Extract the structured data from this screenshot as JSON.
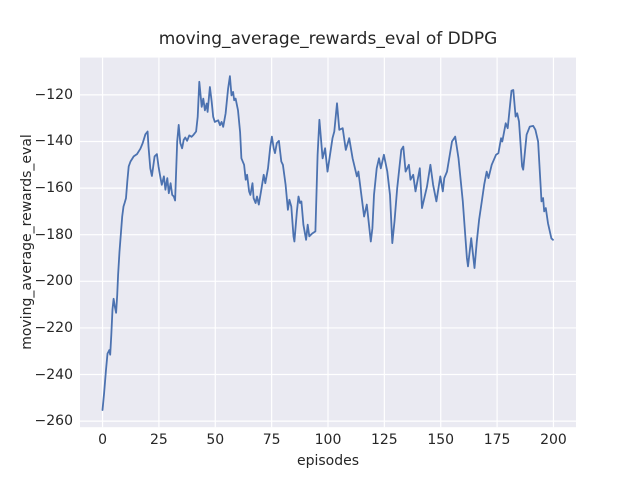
{
  "chart_data": {
    "type": "line",
    "title": "moving_average_rewards_eval of DDPG",
    "xlabel": "episodes",
    "ylabel": "moving_average_rewards_eval",
    "x_ticks": [
      0,
      25,
      50,
      75,
      100,
      125,
      150,
      175,
      200
    ],
    "y_ticks": [
      -120,
      -140,
      -160,
      -180,
      -200,
      -220,
      -240,
      -260
    ],
    "xlim": [
      -10,
      210
    ],
    "ylim": [
      -262.6,
      -104.0
    ],
    "grid": true,
    "legend": "none",
    "style": {
      "axes_background": "#EAEAF2",
      "grid_color": "#FFFFFF",
      "line_color": "#4C72B0",
      "text_color": "#262626",
      "line_width": 1.8
    },
    "series": [
      {
        "name": "moving_average_rewards_eval",
        "points": [
          [
            0.0,
            -255.2
          ],
          [
            0.7,
            -248.0
          ],
          [
            1.5,
            -238.5
          ],
          [
            2.2,
            -231.0
          ],
          [
            3.0,
            -229.5
          ],
          [
            3.4,
            -231.5
          ],
          [
            3.9,
            -223.0
          ],
          [
            4.4,
            -212.0
          ],
          [
            4.9,
            -207.5
          ],
          [
            5.4,
            -210.5
          ],
          [
            6.0,
            -213.5
          ],
          [
            6.5,
            -206.0
          ],
          [
            6.9,
            -197.2
          ],
          [
            7.5,
            -187.2
          ],
          [
            8.1,
            -180.0
          ],
          [
            8.7,
            -172.2
          ],
          [
            9.3,
            -167.9
          ],
          [
            9.8,
            -166.4
          ],
          [
            10.4,
            -164.3
          ],
          [
            11.0,
            -157.2
          ],
          [
            11.6,
            -150.7
          ],
          [
            12.4,
            -148.6
          ],
          [
            13.8,
            -146.4
          ],
          [
            15.3,
            -145.4
          ],
          [
            16.8,
            -143.1
          ],
          [
            17.8,
            -140.7
          ],
          [
            19.0,
            -136.9
          ],
          [
            20.0,
            -135.7
          ],
          [
            20.4,
            -142.2
          ],
          [
            21.2,
            -151.5
          ],
          [
            21.9,
            -154.8
          ],
          [
            23.1,
            -146.4
          ],
          [
            24.1,
            -145.4
          ],
          [
            24.8,
            -150.7
          ],
          [
            25.7,
            -155.7
          ],
          [
            26.3,
            -158.6
          ],
          [
            27.2,
            -155.0
          ],
          [
            27.9,
            -160.7
          ],
          [
            28.7,
            -155.7
          ],
          [
            29.4,
            -162.2
          ],
          [
            30.2,
            -157.9
          ],
          [
            30.9,
            -162.9
          ],
          [
            31.6,
            -163.6
          ],
          [
            32.2,
            -165.3
          ],
          [
            33.1,
            -140.0
          ],
          [
            33.8,
            -132.9
          ],
          [
            34.5,
            -140.7
          ],
          [
            35.3,
            -142.9
          ],
          [
            36.0,
            -139.3
          ],
          [
            36.7,
            -138.3
          ],
          [
            37.5,
            -139.7
          ],
          [
            38.5,
            -137.4
          ],
          [
            39.5,
            -138.0
          ],
          [
            40.4,
            -137.1
          ],
          [
            41.5,
            -135.7
          ],
          [
            42.2,
            -129.4
          ],
          [
            42.9,
            -114.4
          ],
          [
            44.0,
            -125.1
          ],
          [
            44.7,
            -121.6
          ],
          [
            45.4,
            -126.6
          ],
          [
            46.2,
            -123.7
          ],
          [
            46.6,
            -127.3
          ],
          [
            47.6,
            -116.6
          ],
          [
            48.4,
            -123.0
          ],
          [
            49.1,
            -129.4
          ],
          [
            49.8,
            -131.6
          ],
          [
            51.3,
            -130.9
          ],
          [
            52.1,
            -133.0
          ],
          [
            52.8,
            -131.6
          ],
          [
            53.5,
            -133.7
          ],
          [
            54.6,
            -128.0
          ],
          [
            55.7,
            -117.3
          ],
          [
            56.5,
            -112.0
          ],
          [
            57.2,
            -120.2
          ],
          [
            57.9,
            -118.7
          ],
          [
            58.4,
            -122.3
          ],
          [
            59.0,
            -121.6
          ],
          [
            60.1,
            -126.6
          ],
          [
            61.0,
            -136.0
          ],
          [
            61.6,
            -147.2
          ],
          [
            62.8,
            -150.0
          ],
          [
            63.5,
            -156.4
          ],
          [
            64.1,
            -154.3
          ],
          [
            65.0,
            -161.4
          ],
          [
            65.6,
            -162.9
          ],
          [
            66.5,
            -157.9
          ],
          [
            67.0,
            -164.3
          ],
          [
            67.9,
            -166.4
          ],
          [
            68.5,
            -163.6
          ],
          [
            69.3,
            -167.1
          ],
          [
            70.4,
            -160.7
          ],
          [
            71.5,
            -154.3
          ],
          [
            72.2,
            -157.9
          ],
          [
            73.4,
            -151.5
          ],
          [
            74.4,
            -142.2
          ],
          [
            75.1,
            -137.9
          ],
          [
            75.9,
            -142.9
          ],
          [
            76.5,
            -145.0
          ],
          [
            77.3,
            -140.7
          ],
          [
            78.2,
            -139.7
          ],
          [
            79.3,
            -148.6
          ],
          [
            80.0,
            -150.0
          ],
          [
            81.2,
            -158.6
          ],
          [
            82.2,
            -169.3
          ],
          [
            82.9,
            -165.0
          ],
          [
            83.7,
            -167.9
          ],
          [
            84.7,
            -180.7
          ],
          [
            85.1,
            -182.9
          ],
          [
            86.2,
            -170.0
          ],
          [
            86.9,
            -163.6
          ],
          [
            87.6,
            -166.4
          ],
          [
            88.2,
            -165.7
          ],
          [
            89.1,
            -175.7
          ],
          [
            90.3,
            -182.2
          ],
          [
            91.0,
            -175.7
          ],
          [
            91.7,
            -180.7
          ],
          [
            93.0,
            -179.5
          ],
          [
            94.4,
            -178.6
          ],
          [
            95.4,
            -145.7
          ],
          [
            96.2,
            -130.7
          ],
          [
            97.6,
            -147.2
          ],
          [
            98.7,
            -142.9
          ],
          [
            99.8,
            -152.9
          ],
          [
            102.0,
            -138.6
          ],
          [
            102.8,
            -135.7
          ],
          [
            104.0,
            -123.6
          ],
          [
            105.0,
            -135.0
          ],
          [
            106.5,
            -134.3
          ],
          [
            107.9,
            -143.6
          ],
          [
            109.4,
            -138.6
          ],
          [
            110.9,
            -147.2
          ],
          [
            112.8,
            -155.0
          ],
          [
            113.5,
            -152.9
          ],
          [
            116.0,
            -172.2
          ],
          [
            117.2,
            -167.1
          ],
          [
            119.0,
            -182.9
          ],
          [
            119.7,
            -177.2
          ],
          [
            120.4,
            -162.9
          ],
          [
            121.6,
            -151.5
          ],
          [
            122.6,
            -147.2
          ],
          [
            123.4,
            -151.5
          ],
          [
            124.8,
            -145.7
          ],
          [
            126.3,
            -152.9
          ],
          [
            127.5,
            -162.9
          ],
          [
            128.5,
            -183.6
          ],
          [
            129.5,
            -174.3
          ],
          [
            130.7,
            -160.0
          ],
          [
            132.5,
            -143.6
          ],
          [
            133.4,
            -142.2
          ],
          [
            134.4,
            -152.9
          ],
          [
            135.9,
            -150.0
          ],
          [
            136.6,
            -156.4
          ],
          [
            137.8,
            -154.3
          ],
          [
            138.8,
            -161.4
          ],
          [
            140.7,
            -151.5
          ],
          [
            141.7,
            -168.6
          ],
          [
            143.9,
            -159.3
          ],
          [
            145.4,
            -150.0
          ],
          [
            146.6,
            -158.6
          ],
          [
            148.1,
            -165.7
          ],
          [
            149.8,
            -155.0
          ],
          [
            150.9,
            -161.4
          ],
          [
            151.6,
            -155.7
          ],
          [
            152.8,
            -152.9
          ],
          [
            155.0,
            -140.0
          ],
          [
            156.4,
            -137.9
          ],
          [
            157.9,
            -147.2
          ],
          [
            159.8,
            -165.7
          ],
          [
            161.6,
            -190.0
          ],
          [
            162.1,
            -193.6
          ],
          [
            163.5,
            -181.5
          ],
          [
            165.0,
            -194.3
          ],
          [
            166.0,
            -182.9
          ],
          [
            167.0,
            -173.6
          ],
          [
            168.2,
            -165.7
          ],
          [
            169.3,
            -158.5
          ],
          [
            170.4,
            -152.9
          ],
          [
            171.2,
            -155.7
          ],
          [
            172.6,
            -150.0
          ],
          [
            174.5,
            -145.7
          ],
          [
            175.6,
            -145.0
          ],
          [
            176.8,
            -138.6
          ],
          [
            177.3,
            -140.0
          ],
          [
            178.8,
            -132.2
          ],
          [
            179.7,
            -134.3
          ],
          [
            181.4,
            -118.2
          ],
          [
            182.2,
            -117.9
          ],
          [
            183.2,
            -129.3
          ],
          [
            183.9,
            -127.9
          ],
          [
            184.7,
            -131.4
          ],
          [
            186.1,
            -150.7
          ],
          [
            186.6,
            -152.1
          ],
          [
            188.1,
            -137.1
          ],
          [
            189.5,
            -133.6
          ],
          [
            191.0,
            -133.3
          ],
          [
            192.0,
            -135.0
          ],
          [
            193.2,
            -140.0
          ],
          [
            194.0,
            -153.6
          ],
          [
            194.7,
            -165.7
          ],
          [
            195.4,
            -164.3
          ],
          [
            195.9,
            -170.0
          ],
          [
            196.6,
            -168.6
          ],
          [
            197.6,
            -175.1
          ],
          [
            199.1,
            -181.6
          ],
          [
            199.8,
            -182.2
          ]
        ]
      }
    ]
  }
}
